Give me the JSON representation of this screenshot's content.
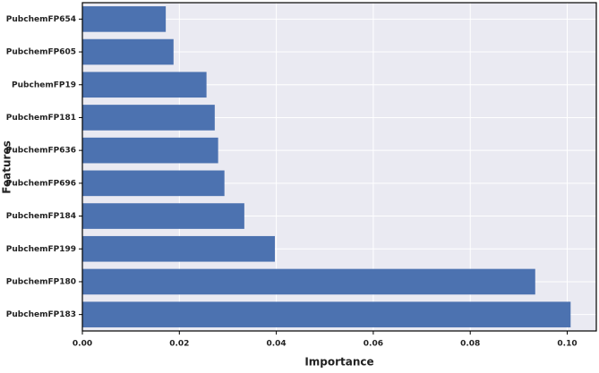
{
  "chart_data": {
    "type": "bar",
    "orientation": "horizontal",
    "xlabel": "Importance",
    "ylabel": "Features",
    "categories": [
      "PubchemFP654",
      "PubchemFP605",
      "PubchemFP19",
      "PubchemFP181",
      "PubchemFP636",
      "PubchemFP696",
      "PubchemFP184",
      "PubchemFP199",
      "PubchemFP180",
      "PubchemFP183"
    ],
    "values": [
      0.0172,
      0.0188,
      0.0256,
      0.0273,
      0.028,
      0.0293,
      0.0334,
      0.0397,
      0.0934,
      0.1007
    ],
    "color": "#4c72b0",
    "xlim": [
      0,
      0.106
    ],
    "xticks": [
      {
        "value": 0,
        "label": "0.00"
      },
      {
        "value": 0.02,
        "label": "0.02"
      },
      {
        "value": 0.04,
        "label": "0.04"
      },
      {
        "value": 0.06,
        "label": "0.06"
      },
      {
        "value": 0.08,
        "label": "0.08"
      },
      {
        "value": 0.1,
        "label": "0.10"
      }
    ],
    "grid": true
  }
}
